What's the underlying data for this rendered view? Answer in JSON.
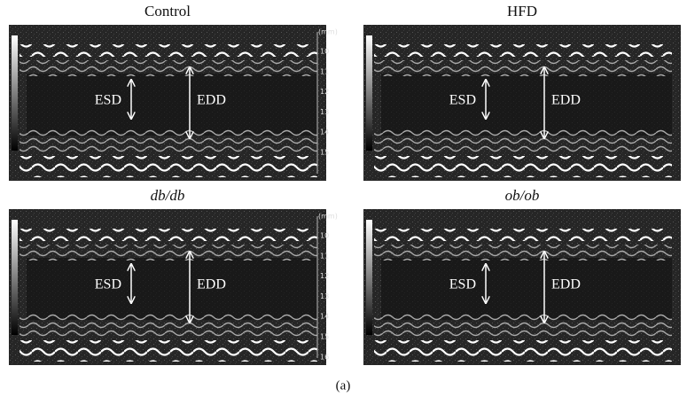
{
  "panels": [
    {
      "title": "Control",
      "labels": [
        "ESD",
        "EDD"
      ],
      "scale": {
        "unit": "(mm)",
        "ticks": [
          "10",
          "11",
          "12",
          "13",
          "14",
          "15"
        ]
      }
    },
    {
      "title": "HFD",
      "labels": [
        "ESD",
        "EDD"
      ]
    },
    {
      "title": "db/db",
      "labels": [
        "ESD",
        "EDD"
      ],
      "scale": {
        "unit": "(mm)",
        "ticks": [
          "10",
          "11",
          "12",
          "13",
          "14",
          "15",
          "16"
        ]
      }
    },
    {
      "title": "ob/ob",
      "labels": [
        "ESD",
        "EDD"
      ]
    }
  ],
  "caption": "(a)"
}
